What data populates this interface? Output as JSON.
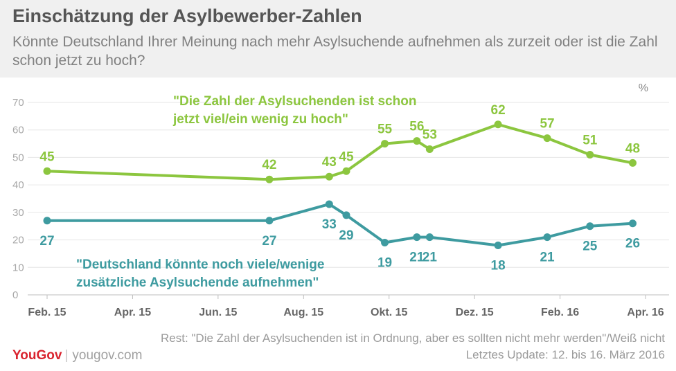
{
  "header": {
    "title": "Einschätzung der Asylbewerber-Zahlen",
    "subtitle": "Könnte Deutschland Ihrer Meinung nach mehr Asylsuchende aufnehmen als zurzeit oder ist die Zahl schon jetzt zu hoch?"
  },
  "footer": {
    "rest": "Rest: \"Die Zahl der Asylsuchenden ist in Ordnung, aber es sollten nicht mehr werden\"/Weiß nicht",
    "update": "Letztes Update: 12. bis 16. März 2016",
    "brand": "YouGov",
    "site": "yougov.com"
  },
  "chart_data": {
    "type": "line",
    "unit_label": "%",
    "ylim": [
      0,
      70
    ],
    "yticks": [
      0,
      10,
      20,
      30,
      40,
      50,
      60,
      70
    ],
    "xlim": [
      0,
      14
    ],
    "xticks": [
      {
        "x": 0,
        "label": "Feb. 15"
      },
      {
        "x": 2,
        "label": "Apr. 15"
      },
      {
        "x": 4,
        "label": "Jun. 15"
      },
      {
        "x": 6,
        "label": "Aug. 15"
      },
      {
        "x": 8,
        "label": "Okt. 15"
      },
      {
        "x": 10,
        "label": "Dez. 15"
      },
      {
        "x": 12,
        "label": "Feb. 16"
      },
      {
        "x": 14,
        "label": "Apr. 16"
      }
    ],
    "grid": true,
    "series": [
      {
        "name": "\"Die Zahl der Asylsuchenden ist schon jetzt viel/ein wenig zu hoch\"",
        "name_lines": [
          "\"Die Zahl der Asylsuchenden ist schon",
          "jetzt viel/ein wenig zu hoch\""
        ],
        "color": "#8cc63f",
        "label_position": "above",
        "points": [
          {
            "x": 0,
            "y": 45
          },
          {
            "x": 5.2,
            "y": 42
          },
          {
            "x": 6.6,
            "y": 43
          },
          {
            "x": 7.0,
            "y": 45
          },
          {
            "x": 7.9,
            "y": 55
          },
          {
            "x": 8.65,
            "y": 56
          },
          {
            "x": 8.95,
            "y": 53
          },
          {
            "x": 10.55,
            "y": 62
          },
          {
            "x": 11.7,
            "y": 57
          },
          {
            "x": 12.7,
            "y": 51
          },
          {
            "x": 13.7,
            "y": 48
          }
        ]
      },
      {
        "name": "\"Deutschland könnte noch viele/wenige zusätzliche Asylsuchende aufnehmen\"",
        "name_lines": [
          "\"Deutschland könnte noch viele/wenige",
          "zusätzliche Asylsuchende aufnehmen\""
        ],
        "color": "#3e9ba0",
        "label_position": "below",
        "points": [
          {
            "x": 0,
            "y": 27
          },
          {
            "x": 5.2,
            "y": 27
          },
          {
            "x": 6.6,
            "y": 33
          },
          {
            "x": 7.0,
            "y": 29
          },
          {
            "x": 7.9,
            "y": 19
          },
          {
            "x": 8.65,
            "y": 21
          },
          {
            "x": 8.95,
            "y": 21
          },
          {
            "x": 10.55,
            "y": 18
          },
          {
            "x": 11.7,
            "y": 21
          },
          {
            "x": 12.7,
            "y": 25
          },
          {
            "x": 13.7,
            "y": 26
          }
        ]
      }
    ]
  }
}
